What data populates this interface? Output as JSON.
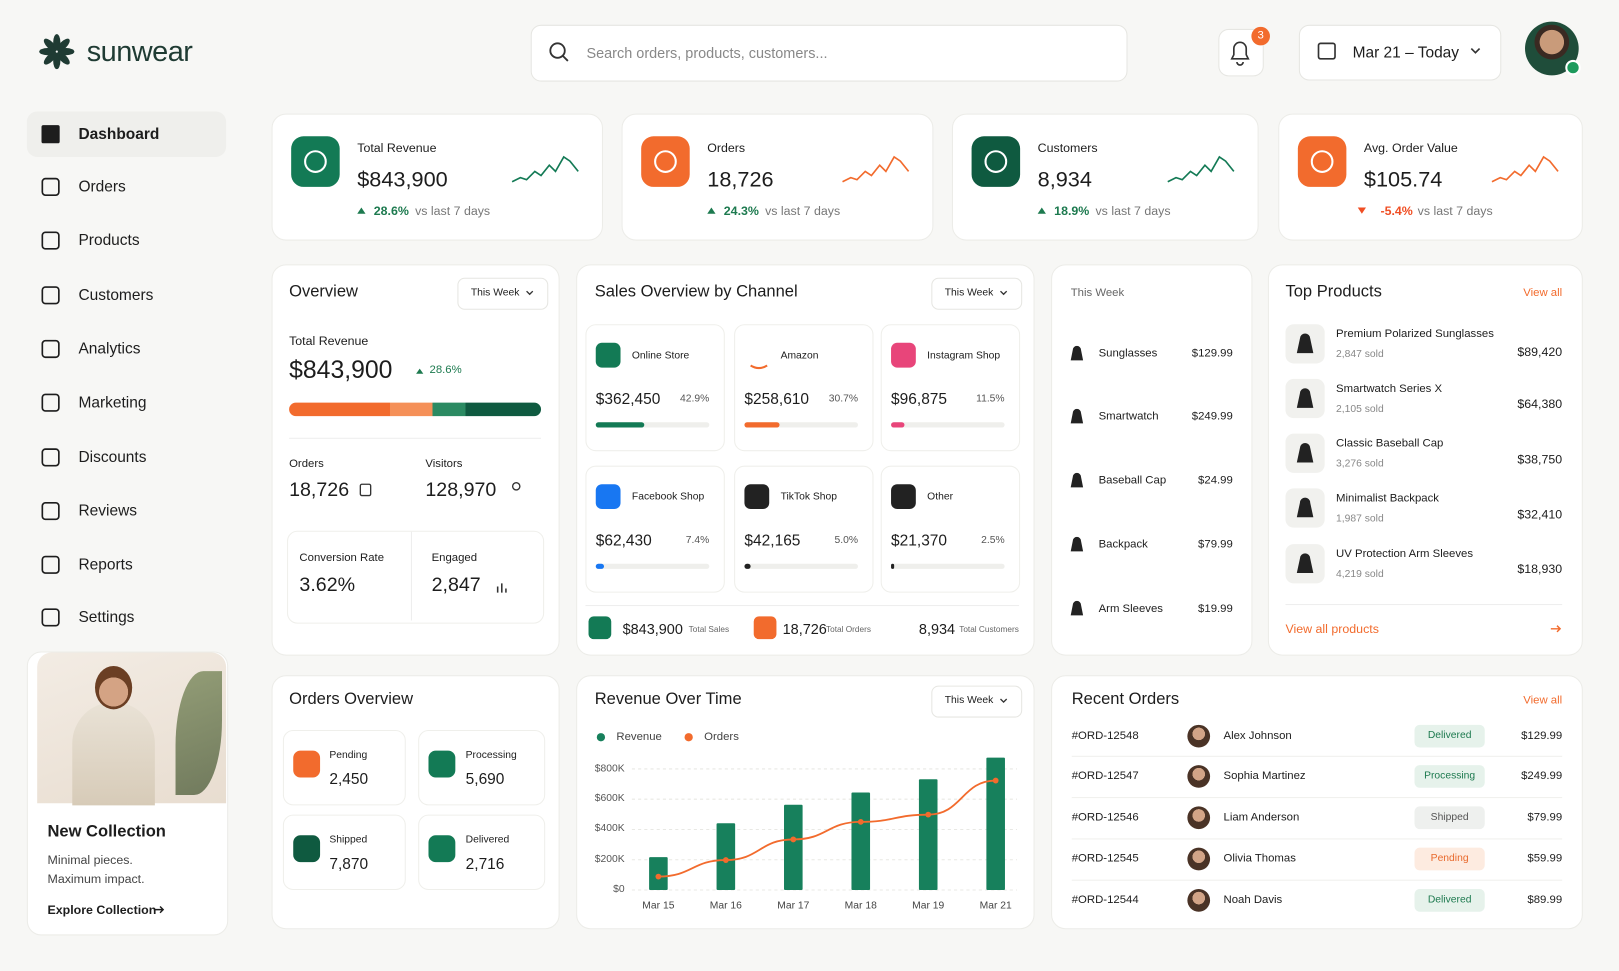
{
  "brand": "sunwear",
  "search_placeholder": "Search orders, products, customers...",
  "notifications": "3",
  "date_range": "Mar 21 – Today",
  "nav": [
    "Dashboard",
    "Orders",
    "Products",
    "Customers",
    "Analytics",
    "Marketing",
    "Discounts",
    "Reviews",
    "Reports",
    "Settings"
  ],
  "promo": {
    "title": "New Collection",
    "text": [
      "Minimal pieces.",
      "Maximum impact."
    ],
    "link": "Explore Collection"
  },
  "kpis": [
    {
      "label": "Total Revenue",
      "value": "$843,900",
      "change": "28.6%",
      "compare": "vs last 7 days",
      "color": "#1d7a4f",
      "icon_color": "#137a55"
    },
    {
      "label": "Orders",
      "value": "18,726",
      "change": "24.3%",
      "compare": "vs last 7 days",
      "color": "#1d7a4f",
      "icon_color": "#f26b2d"
    },
    {
      "label": "Customers",
      "value": "8,934",
      "change": "18.9%",
      "compare": "vs last 7 days",
      "color": "#1d7a4f",
      "icon_color": "#0f5a40"
    },
    {
      "label": "Avg. Order Value",
      "value": "$105.74",
      "change": "-5.4%",
      "compare": "vs last 7 days",
      "color": "#f04e23",
      "icon_color": "#f26b2d"
    }
  ],
  "overview": {
    "title": "Overview",
    "filter": "This Week",
    "revenue_label": "Total Revenue",
    "revenue": "$843,900",
    "change": "28.6%",
    "stats": [
      {
        "label": "Orders",
        "value": "18,726"
      },
      {
        "label": "Visitors",
        "value": "128,970"
      },
      {
        "label": "Conversion Rate",
        "value": "3.62%"
      },
      {
        "label": "Engaged",
        "value": "2,847"
      }
    ]
  },
  "channels": {
    "title": "Sales Overview by Channel",
    "filter": "This Week",
    "items": [
      {
        "name": "Online Store",
        "amount": "$362,450",
        "share": 42.9,
        "share_label": "42.9%",
        "color": "#137a55"
      },
      {
        "name": "Amazon",
        "amount": "$258,610",
        "share": 30.7,
        "share_label": "30.7%",
        "color": "#f26b2d"
      },
      {
        "name": "Instagram Shop",
        "amount": "$96,875",
        "share": 11.5,
        "share_label": "11.5%",
        "color": "#e8457a"
      },
      {
        "name": "Facebook Shop",
        "amount": "$62,430",
        "share": 7.4,
        "share_label": "7.4%",
        "color": "#1877f2"
      },
      {
        "name": "TikTok Shop",
        "amount": "$42,165",
        "share": 5.0,
        "share_label": "5.0%",
        "color": "#222222"
      },
      {
        "name": "Other",
        "amount": "$21,370",
        "share": 2.5,
        "share_label": "2.5%",
        "color": "#222222"
      }
    ],
    "totals": [
      {
        "value": "$843,900",
        "label": "Total Sales"
      },
      {
        "value": "18,726",
        "label": "Total Orders"
      },
      {
        "value": "8,934",
        "label": "Total Customers"
      }
    ]
  },
  "week_products": {
    "title": "This Week",
    "items": [
      {
        "name": "Sunglasses",
        "price": "$129.99"
      },
      {
        "name": "Smartwatch",
        "price": "$249.99"
      },
      {
        "name": "Baseball Cap",
        "price": "$24.99"
      },
      {
        "name": "Backpack",
        "price": "$79.99"
      },
      {
        "name": "Arm Sleeves",
        "price": "$19.99"
      }
    ]
  },
  "top_products": {
    "title": "Top Products",
    "view_all": "View all",
    "footer": "View all products",
    "items": [
      {
        "name": "Premium Polarized Sunglasses",
        "sold": "2,847 sold",
        "revenue": "$89,420"
      },
      {
        "name": "Smartwatch Series X",
        "sold": "2,105 sold",
        "revenue": "$64,380"
      },
      {
        "name": "Classic Baseball Cap",
        "sold": "3,276 sold",
        "revenue": "$38,750"
      },
      {
        "name": "Minimalist Backpack",
        "sold": "1,987 sold",
        "revenue": "$32,410"
      },
      {
        "name": "UV Protection Arm Sleeves",
        "sold": "4,219 sold",
        "revenue": "$18,930"
      }
    ]
  },
  "orders_overview": {
    "title": "Orders Overview",
    "items": [
      {
        "label": "Pending",
        "value": "2,450",
        "color": "#f26b2d"
      },
      {
        "label": "Processing",
        "value": "5,690",
        "color": "#137a55"
      },
      {
        "label": "Shipped",
        "value": "7,870",
        "color": "#0f5a40"
      },
      {
        "label": "Delivered",
        "value": "2,716",
        "color": "#137a55"
      }
    ]
  },
  "chart_data": {
    "type": "bar+line",
    "title": "Revenue Over Time",
    "filter": "This Week",
    "categories": [
      "Mar 15",
      "Mar 16",
      "Mar 17",
      "Mar 18",
      "Mar 19",
      "Mar 21"
    ],
    "series": [
      {
        "name": "Revenue",
        "color": "#17805c",
        "type": "bar",
        "values": [
          217000,
          441000,
          563000,
          644000,
          732000,
          875000
        ]
      },
      {
        "name": "Orders",
        "color": "#f26b2d",
        "type": "line",
        "axis": "y2",
        "values": [
          443,
          989,
          1671,
          2251,
          2490,
          3616
        ]
      }
    ],
    "ylim": [
      0,
      880000
    ],
    "yticks": [
      {
        "value": 0,
        "label": "$0"
      },
      {
        "value": 200000,
        "label": "$200K"
      },
      {
        "value": 400000,
        "label": "$400K"
      },
      {
        "value": 600000,
        "label": "$600K"
      },
      {
        "value": 800000,
        "label": "$800K"
      }
    ],
    "y2lim": [
      0,
      4400
    ],
    "grid": true
  },
  "recent_orders": {
    "title": "Recent Orders",
    "view_all": "View all",
    "rows": [
      {
        "id": "#ORD-12548",
        "customer": "Alex Johnson",
        "status": "Delivered",
        "amount": "$129.99",
        "status_color": "#1d7a4f",
        "status_bg": "#e6f2eb"
      },
      {
        "id": "#ORD-12547",
        "customer": "Sophia Martinez",
        "status": "Processing",
        "amount": "$249.99",
        "status_color": "#1d7a4f",
        "status_bg": "#e6f2eb"
      },
      {
        "id": "#ORD-12546",
        "customer": "Liam Anderson",
        "status": "Shipped",
        "amount": "$79.99",
        "status_color": "#555555",
        "status_bg": "#eef0ee"
      },
      {
        "id": "#ORD-12545",
        "customer": "Olivia Thomas",
        "status": "Pending",
        "amount": "$59.99",
        "status_color": "#e8692c",
        "status_bg": "#fdebe0"
      },
      {
        "id": "#ORD-12544",
        "customer": "Noah Davis",
        "status": "Delivered",
        "amount": "$89.99",
        "status_color": "#1d7a4f",
        "status_bg": "#e6f2eb"
      }
    ]
  }
}
